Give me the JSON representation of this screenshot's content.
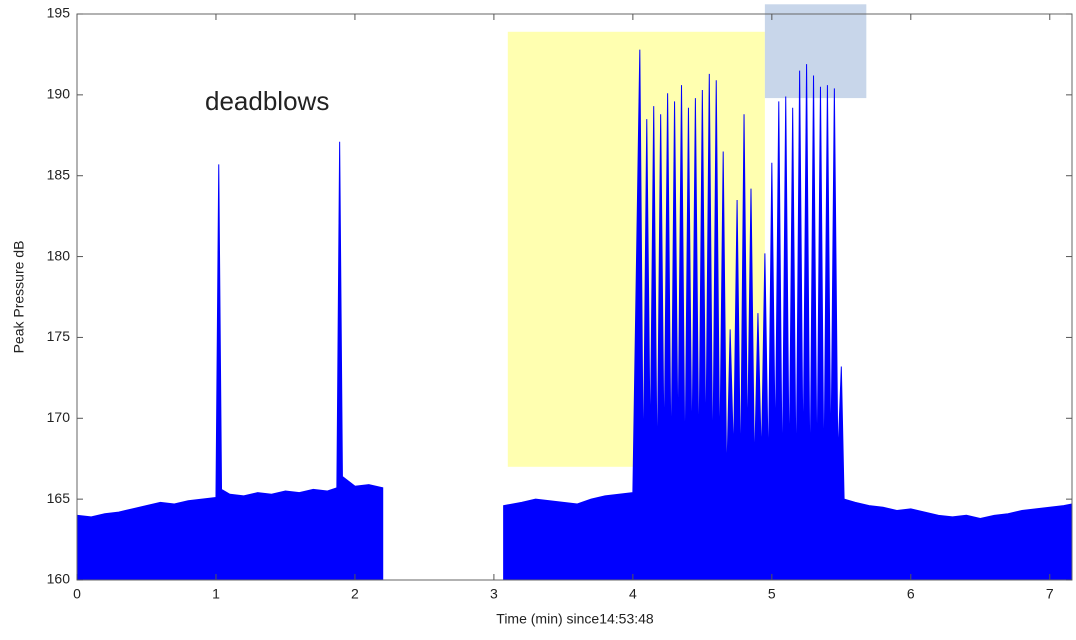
{
  "chart_data": {
    "type": "area",
    "xlabel": "Time (min) since14:53:48",
    "ylabel": "Peak Pressure dB",
    "annotation": "deadblows",
    "color": "#0000ff",
    "xlim": [
      0,
      7.16
    ],
    "ylim": [
      160,
      195
    ],
    "xticks": [
      0,
      1,
      2,
      3,
      4,
      5,
      6,
      7
    ],
    "yticks": [
      160,
      165,
      170,
      175,
      180,
      185,
      190,
      195
    ],
    "highlights": [
      {
        "xlim": [
          3.1,
          4.95
        ],
        "ylim": [
          167,
          193.9
        ],
        "color": "#ffffb0"
      },
      {
        "xlim": [
          4.95,
          5.68
        ],
        "ylim": [
          189.8,
          195.6
        ],
        "color": "#c8d6ea"
      }
    ],
    "x": [
      0,
      0.1,
      0.2,
      0.3,
      0.4,
      0.5,
      0.6,
      0.7,
      0.8,
      0.9,
      1.0,
      1.02,
      1.04,
      1.1,
      1.2,
      1.3,
      1.4,
      1.5,
      1.6,
      1.7,
      1.8,
      1.87,
      1.89,
      1.91,
      2.0,
      2.1,
      2.2,
      2.6,
      3.07,
      3.2,
      3.3,
      3.4,
      3.5,
      3.6,
      3.7,
      3.8,
      3.9,
      4.0,
      4.05,
      4.075,
      4.1,
      4.125,
      4.15,
      4.175,
      4.2,
      4.225,
      4.25,
      4.275,
      4.3,
      4.325,
      4.35,
      4.375,
      4.4,
      4.425,
      4.45,
      4.475,
      4.5,
      4.525,
      4.55,
      4.575,
      4.6,
      4.625,
      4.65,
      4.675,
      4.7,
      4.725,
      4.75,
      4.775,
      4.8,
      4.825,
      4.85,
      4.875,
      4.9,
      4.925,
      4.95,
      4.975,
      5.0,
      5.025,
      5.05,
      5.075,
      5.1,
      5.125,
      5.15,
      5.175,
      5.2,
      5.225,
      5.25,
      5.275,
      5.3,
      5.325,
      5.35,
      5.375,
      5.4,
      5.425,
      5.45,
      5.475,
      5.5,
      5.52,
      5.6,
      5.7,
      5.8,
      5.9,
      6.0,
      6.1,
      6.2,
      6.3,
      6.4,
      6.5,
      6.6,
      6.7,
      6.8,
      6.9,
      7.0,
      7.1,
      7.16
    ],
    "values": [
      164,
      163.9,
      164.1,
      164.2,
      164.4,
      164.6,
      164.8,
      164.7,
      164.9,
      165,
      165.1,
      185.7,
      165.6,
      165.3,
      165.2,
      165.4,
      165.3,
      165.5,
      165.4,
      165.6,
      165.5,
      165.7,
      187.1,
      166.4,
      165.8,
      165.9,
      165.7,
      null,
      164.6,
      164.8,
      165,
      164.9,
      164.8,
      164.7,
      165,
      165.2,
      165.3,
      165.4,
      192.8,
      166.5,
      188.5,
      167.8,
      189.3,
      166.2,
      188.8,
      167.5,
      190.1,
      166.8,
      189.6,
      168.1,
      190.6,
      166.4,
      189.2,
      167.2,
      189.8,
      166.9,
      190.3,
      167.6,
      191.3,
      166.3,
      190.9,
      167,
      186.5,
      166,
      175.5,
      167.5,
      183.5,
      166.2,
      188.8,
      168,
      184.2,
      166.7,
      176.5,
      167.3,
      180.2,
      166.5,
      185.8,
      167.8,
      189.6,
      165.6,
      189.9,
      166.3,
      189.2,
      165.5,
      191.5,
      166.8,
      191.9,
      165.3,
      191.2,
      166.1,
      190.5,
      165.8,
      190.6,
      166.9,
      190.4,
      167.5,
      173.2,
      165,
      164.8,
      164.6,
      164.5,
      164.3,
      164.4,
      164.2,
      164,
      163.9,
      164,
      163.8,
      164,
      164.1,
      164.3,
      164.4,
      164.5,
      164.6,
      164.7
    ]
  }
}
